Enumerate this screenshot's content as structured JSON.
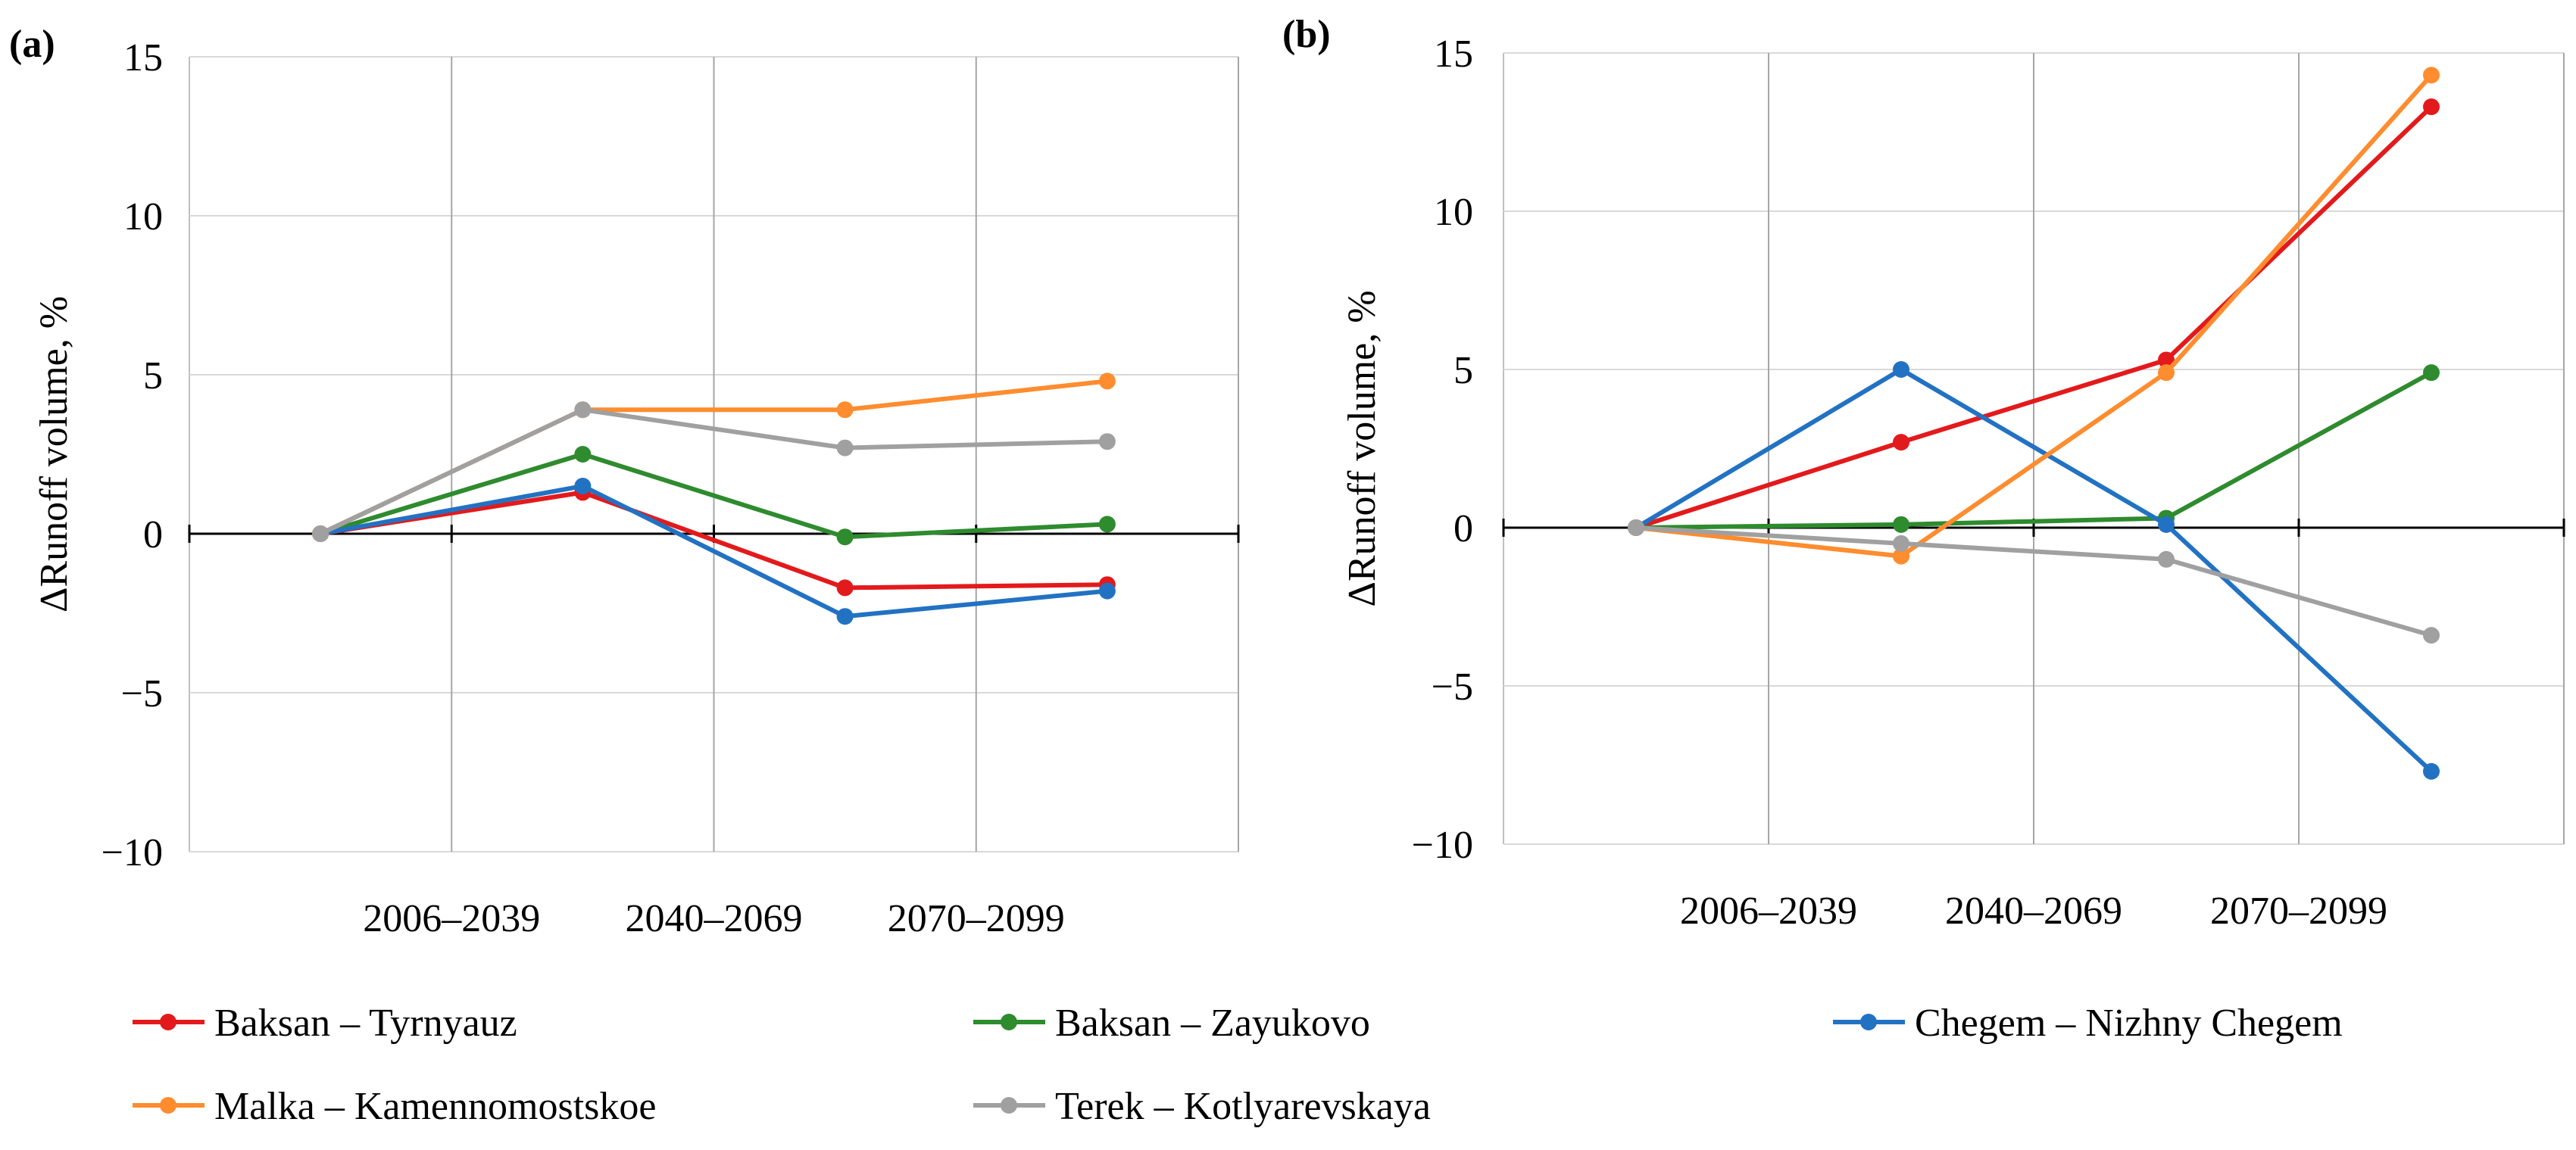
{
  "figure": {
    "legend": [
      {
        "label": "Baksan – Tyrnyauz",
        "color": "#e31a1c"
      },
      {
        "label": "Baksan – Zayukovo",
        "color": "#2e8b2e"
      },
      {
        "label": "Chegem – Nizhny Chegem",
        "color": "#2272c3"
      },
      {
        "label": "Malka – Kamennomostskoe",
        "color": "#ff8c2e"
      },
      {
        "label": "Terek – Kotlyarevskaya",
        "color": "#a0a0a0"
      }
    ]
  },
  "chart_data": [
    {
      "type": "line",
      "panel_label": "(a)",
      "title": "",
      "xlabel": "",
      "ylabel": "ΔRunoff volume, %",
      "ylim": [
        -10,
        15
      ],
      "yticks": [
        15,
        10,
        5,
        0,
        -5,
        -10
      ],
      "ytick_labels": [
        "15",
        "10",
        "5",
        "0",
        "−5",
        "−10"
      ],
      "categories": [
        "",
        "2006–2039",
        "2040–2069",
        "2070–2099"
      ],
      "grid": true,
      "series": [
        {
          "name": "Baksan – Tyrnyauz",
          "color": "#e31a1c",
          "values": [
            0,
            1.3,
            -1.7,
            -1.6
          ]
        },
        {
          "name": "Baksan – Zayukovo",
          "color": "#2e8b2e",
          "values": [
            0,
            2.5,
            -0.1,
            0.3
          ]
        },
        {
          "name": "Chegem – Nizhny Chegem",
          "color": "#2272c3",
          "values": [
            0,
            1.5,
            -2.6,
            -1.8
          ]
        },
        {
          "name": "Malka – Kamennomostskoe",
          "color": "#ff8c2e",
          "values": [
            0,
            3.9,
            3.9,
            4.8
          ]
        },
        {
          "name": "Terek – Kotlyarevskaya",
          "color": "#a0a0a0",
          "values": [
            0,
            3.9,
            2.7,
            2.9
          ]
        }
      ]
    },
    {
      "type": "line",
      "panel_label": "(b)",
      "title": "",
      "xlabel": "",
      "ylabel": "ΔRunoff volume, %",
      "ylim": [
        -10,
        15
      ],
      "yticks": [
        15,
        10,
        5,
        0,
        -5,
        -10
      ],
      "ytick_labels": [
        "15",
        "10",
        "5",
        "0",
        "−5",
        "−10"
      ],
      "categories": [
        "",
        "2006–2039",
        "2040–2069",
        "2070–2099"
      ],
      "grid": true,
      "series": [
        {
          "name": "Baksan – Tyrnyauz",
          "color": "#e31a1c",
          "values": [
            0,
            2.7,
            5.3,
            13.3
          ]
        },
        {
          "name": "Baksan – Zayukovo",
          "color": "#2e8b2e",
          "values": [
            0,
            0.1,
            0.3,
            4.9
          ]
        },
        {
          "name": "Chegem – Nizhny Chegem",
          "color": "#2272c3",
          "values": [
            0,
            5.0,
            0.1,
            -7.7
          ]
        },
        {
          "name": "Malka – Kamennomostskoe",
          "color": "#ff8c2e",
          "values": [
            0,
            -0.9,
            4.9,
            14.3
          ]
        },
        {
          "name": "Terek – Kotlyarevskaya",
          "color": "#a0a0a0",
          "values": [
            0,
            -0.5,
            -1.0,
            -3.4
          ]
        }
      ]
    }
  ]
}
